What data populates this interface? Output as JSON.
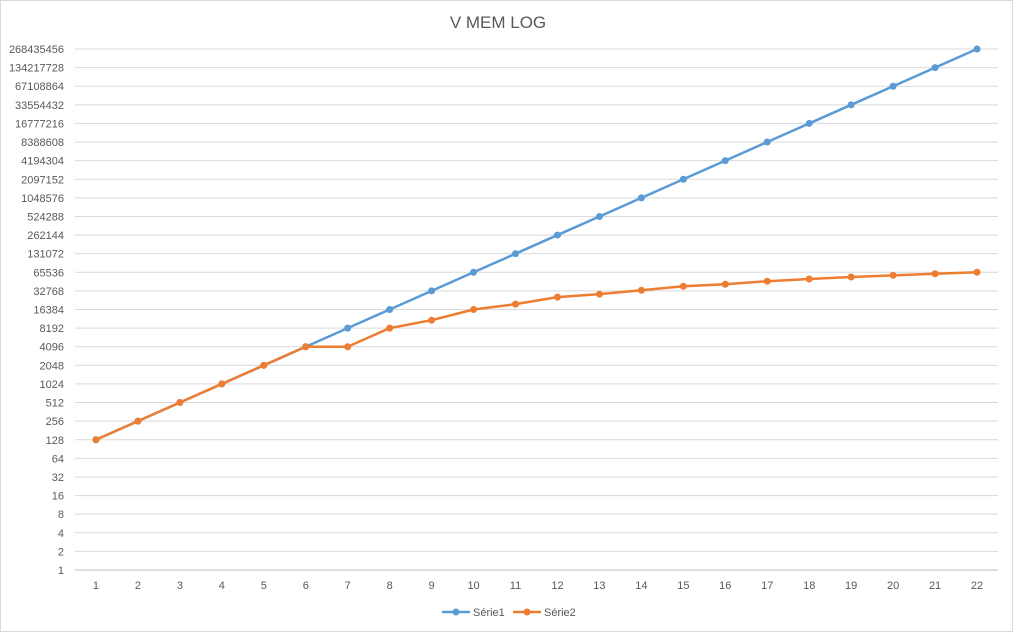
{
  "chart_data": {
    "type": "line",
    "title": "V MEM LOG",
    "xlabel": "",
    "ylabel": "",
    "y_scale": "log2",
    "ylim": [
      1,
      268435456
    ],
    "x": [
      1,
      2,
      3,
      4,
      5,
      6,
      7,
      8,
      9,
      10,
      11,
      12,
      13,
      14,
      15,
      16,
      17,
      18,
      19,
      20,
      21,
      22
    ],
    "y_ticks": [
      "1",
      "2",
      "4",
      "8",
      "16",
      "32",
      "64",
      "128",
      "256",
      "512",
      "1024",
      "2048",
      "4096",
      "8192",
      "16384",
      "32768",
      "65536",
      "131072",
      "262144",
      "524288",
      "1048576",
      "2097152",
      "4194304",
      "8388608",
      "16777216",
      "33554432",
      "67108864",
      "134217728",
      "268435456"
    ],
    "grid": true,
    "legend_position": "bottom",
    "series": [
      {
        "name": "Série1",
        "color": "#5B9BD5",
        "values": [
          128,
          256,
          512,
          1024,
          2048,
          4096,
          8192,
          16384,
          32768,
          65536,
          131072,
          262144,
          524288,
          1048576,
          2097152,
          4194304,
          8388608,
          16777216,
          33554432,
          67108864,
          134217728,
          268435456
        ]
      },
      {
        "name": "Série2",
        "color": "#ED7D31",
        "values": [
          128,
          256,
          512,
          1024,
          2048,
          4096,
          4096,
          8192,
          11000,
          16384,
          20000,
          26000,
          29000,
          33500,
          39000,
          42000,
          47000,
          51000,
          55000,
          58500,
          62000,
          65536
        ]
      }
    ]
  }
}
